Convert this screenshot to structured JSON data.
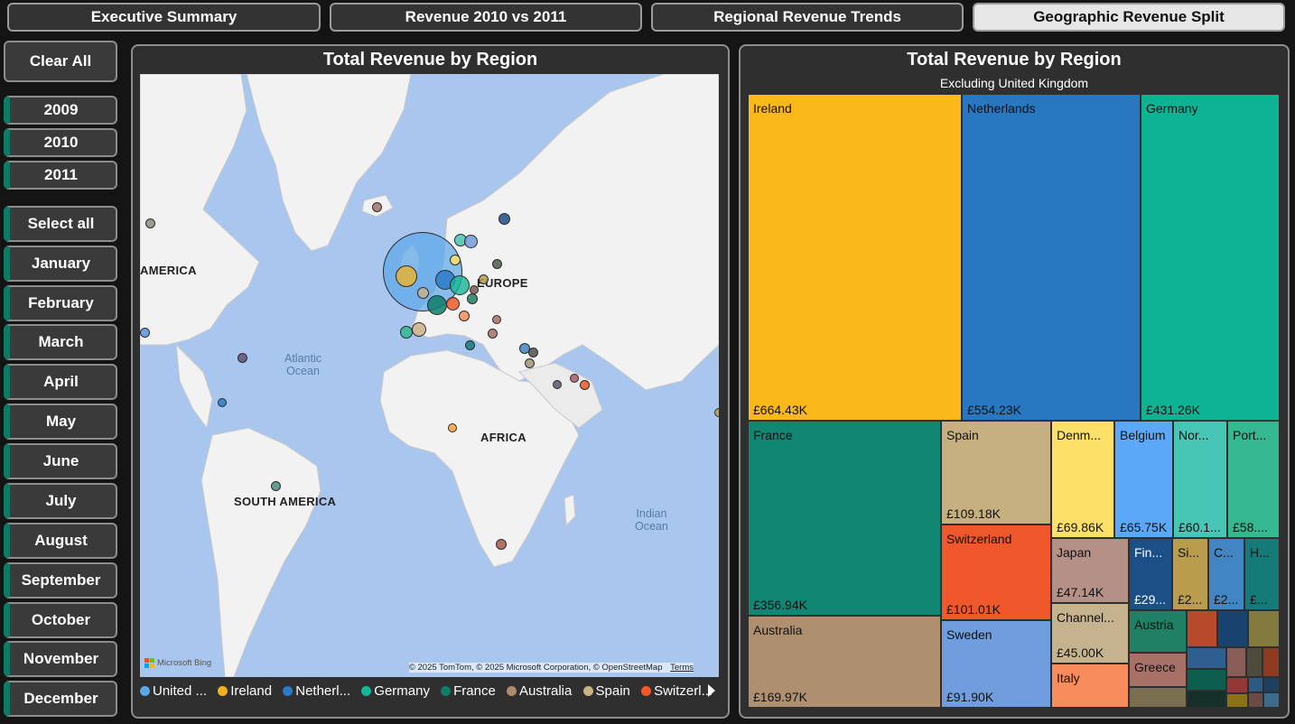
{
  "tabs": [
    {
      "label": "Executive Summary",
      "active": false
    },
    {
      "label": "Revenue 2010 vs 2011",
      "active": false
    },
    {
      "label": "Regional Revenue Trends",
      "active": false
    },
    {
      "label": "Geographic Revenue Split",
      "active": true
    }
  ],
  "sidebar": {
    "clear_all": "Clear All",
    "years": [
      "2009",
      "2010",
      "2011"
    ],
    "select_all": "Select all",
    "months": [
      "January",
      "February",
      "March",
      "April",
      "May",
      "June",
      "July",
      "August",
      "September",
      "October",
      "November",
      "December"
    ]
  },
  "map_panel": {
    "title": "Total Revenue by Region",
    "labels": {
      "north_america": "AMERICA",
      "europe": "EUROPE",
      "africa": "AFRICA",
      "south_america": "SOUTH AMERICA",
      "atlantic": "Atlantic\nOcean",
      "indian": "Indian\nOcean"
    },
    "attribution": "© 2025 TomTom, © 2025 Microsoft Corporation, © OpenStreetMap",
    "terms": "Terms",
    "bing": "Microsoft Bing",
    "legend": [
      {
        "label": "United ...",
        "color": "#5aa7e8"
      },
      {
        "label": "Ireland",
        "color": "#f2b01e"
      },
      {
        "label": "Netherl...",
        "color": "#2b7bc8"
      },
      {
        "label": "Germany",
        "color": "#16b596"
      },
      {
        "label": "France",
        "color": "#0f7e6b"
      },
      {
        "label": "Australia",
        "color": "#ab8b6c"
      },
      {
        "label": "Spain",
        "color": "#c9b284"
      },
      {
        "label": "Switzerl...",
        "color": "#f05a2a"
      }
    ]
  },
  "treemap_panel": {
    "title": "Total Revenue by Region",
    "subtitle": "Excluding United Kingdom",
    "tiles": [
      {
        "label": "Ireland",
        "value": "£664.43K",
        "color": "#fbb81a"
      },
      {
        "label": "Netherlands",
        "value": "£554.23K",
        "color": "#2877c1"
      },
      {
        "label": "Germany",
        "value": "£431.26K",
        "color": "#0db393"
      },
      {
        "label": "France",
        "value": "£356.94K",
        "color": "#108673"
      },
      {
        "label": "Spain",
        "value": "£109.18K",
        "color": "#c6b07f"
      },
      {
        "label": "Denm...",
        "value": "£69.86K",
        "color": "#fde067"
      },
      {
        "label": "Belgium",
        "value": "£65.75K",
        "color": "#5aa8f7"
      },
      {
        "label": "Nor...",
        "value": "£60.1...",
        "color": "#48c6b5"
      },
      {
        "label": "Port...",
        "value": "£58....",
        "color": "#33b88f"
      },
      {
        "label": "Switzerland",
        "value": "£101.01K",
        "color": "#f0572b"
      },
      {
        "label": "Japan",
        "value": "£47.14K",
        "color": "#b59087"
      },
      {
        "label": "Fin...",
        "value": "£29...",
        "color": "#1c4f86"
      },
      {
        "label": "Si...",
        "value": "£2...",
        "color": "#b99d4c"
      },
      {
        "label": "C...",
        "value": "£2...",
        "color": "#4185c3"
      },
      {
        "label": "H...",
        "value": "£...",
        "color": "#157b79"
      },
      {
        "label": "Australia",
        "value": "£169.97K",
        "color": "#ae9070"
      },
      {
        "label": "Sweden",
        "value": "£91.90K",
        "color": "#6f9ddd"
      },
      {
        "label": "Channel...",
        "value": "£45.00K",
        "color": "#c5b38f"
      },
      {
        "label": "Austria",
        "value": "",
        "color": "#208064"
      },
      {
        "label": "Greece",
        "value": "",
        "color": "#a97068"
      },
      {
        "label": "Italy",
        "value": "",
        "color": "#f88c5c"
      }
    ]
  }
}
